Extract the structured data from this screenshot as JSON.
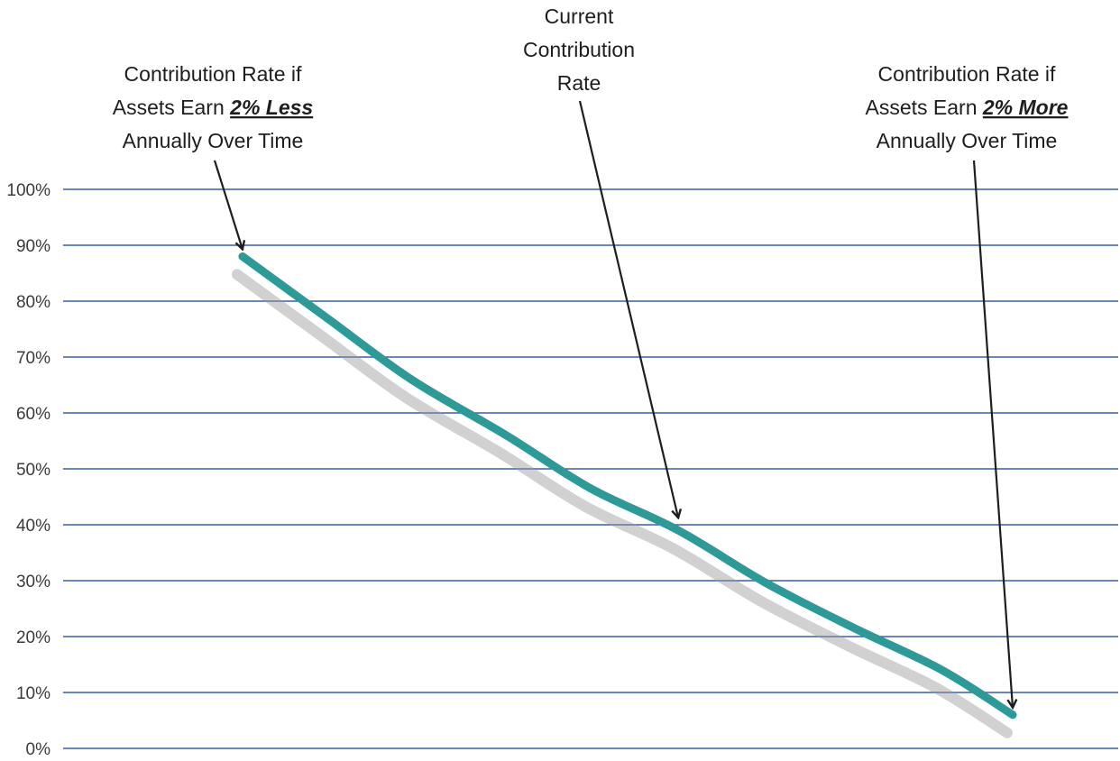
{
  "chart_data": {
    "type": "line",
    "title": "",
    "xlabel": "",
    "ylabel": "",
    "ylim": [
      0,
      100
    ],
    "y_ticks": [
      "0%",
      "10%",
      "20%",
      "30%",
      "40%",
      "50%",
      "60%",
      "70%",
      "80%",
      "90%",
      "100%"
    ],
    "grid": true,
    "legend": "none",
    "line_color": "#2e9a98",
    "grid_color": "#3a5fa8",
    "series": [
      {
        "points": [
          {
            "x": 0.17,
            "y": 88
          },
          {
            "x": 0.25,
            "y": 77
          },
          {
            "x": 0.33,
            "y": 66
          },
          {
            "x": 0.42,
            "y": 56
          },
          {
            "x": 0.5,
            "y": 46.5
          },
          {
            "x": 0.583,
            "y": 39
          },
          {
            "x": 0.667,
            "y": 29.5
          },
          {
            "x": 0.75,
            "y": 21.5
          },
          {
            "x": 0.833,
            "y": 14
          },
          {
            "x": 0.9,
            "y": 6
          }
        ]
      }
    ],
    "annotations": [
      {
        "id": "less",
        "lines": [
          [
            {
              "t": "Contribution Rate if",
              "em": false
            }
          ],
          [
            {
              "t": "Assets Earn ",
              "em": false
            },
            {
              "t": "2% Less",
              "em": true
            }
          ],
          [
            {
              "t": "Annually Over Time",
              "em": false
            }
          ]
        ],
        "x": 0.17,
        "y": 88
      },
      {
        "id": "current",
        "lines": [
          [
            {
              "t": "Current",
              "em": false
            }
          ],
          [
            {
              "t": "Contribution",
              "em": false
            }
          ],
          [
            {
              "t": "Rate",
              "em": false
            }
          ]
        ],
        "x": 0.583,
        "y": 39
      },
      {
        "id": "more",
        "lines": [
          [
            {
              "t": "Contribution Rate if",
              "em": false
            }
          ],
          [
            {
              "t": "Assets Earn ",
              "em": false
            },
            {
              "t": "2% More",
              "em": true
            }
          ],
          [
            {
              "t": "Annually Over Time",
              "em": false
            }
          ]
        ],
        "x": 0.9,
        "y": 6
      }
    ]
  }
}
